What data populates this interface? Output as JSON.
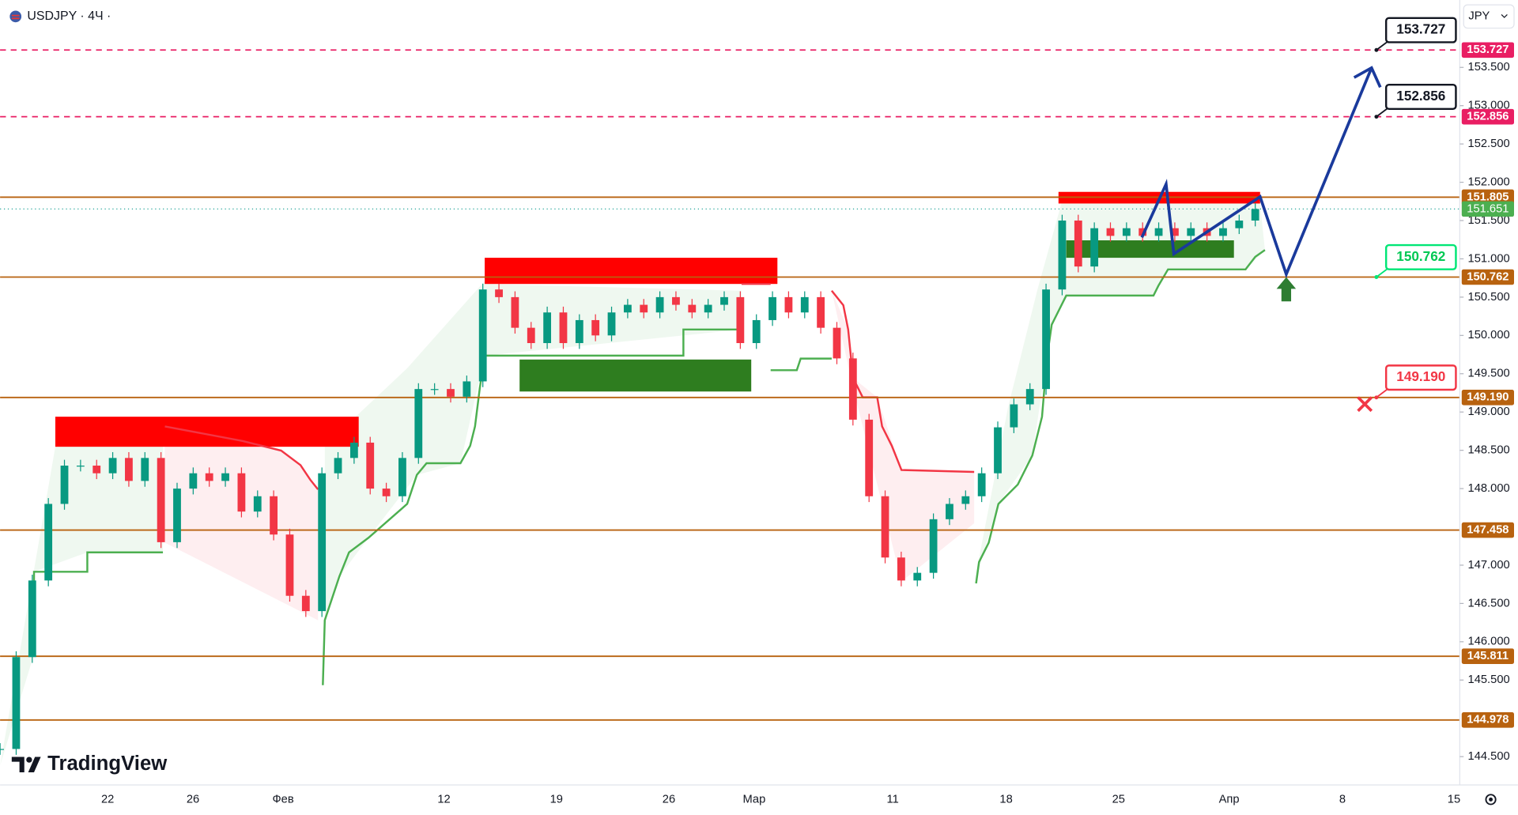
{
  "header": {
    "symbol": "USDJPY · 4Ч ·",
    "currency": "JPY"
  },
  "logo": "TradingView",
  "chart_data": {
    "type": "candlestick",
    "ylim": [
      144.13,
      154.38
    ],
    "yticks": [
      {
        "value": 144.5,
        "label": "144.500"
      },
      {
        "value": 145.5,
        "label": "145.500"
      },
      {
        "value": 146,
        "label": "146.000"
      },
      {
        "value": 146.5,
        "label": "146.500"
      },
      {
        "value": 147,
        "label": "147.000"
      },
      {
        "value": 148,
        "label": "148.000"
      },
      {
        "value": 148.5,
        "label": "148.500"
      },
      {
        "value": 149,
        "label": "149.000"
      },
      {
        "value": 149.5,
        "label": "149.500"
      },
      {
        "value": 150,
        "label": "150.000"
      },
      {
        "value": 150.5,
        "label": "150.500"
      },
      {
        "value": 151,
        "label": "151.000"
      },
      {
        "value": 151.5,
        "label": "151.500"
      },
      {
        "value": 152,
        "label": "152.000"
      },
      {
        "value": 152.5,
        "label": "152.500"
      },
      {
        "value": 153,
        "label": "153.000"
      },
      {
        "value": 153.5,
        "label": "153.500"
      }
    ],
    "x_labels": [
      "22",
      "26",
      "Фев",
      "12",
      "19",
      "26",
      "Мар",
      "11",
      "18",
      "25",
      "Апр",
      "8",
      "15"
    ],
    "levels": [
      {
        "price": 153.727,
        "color": "#e91e63",
        "style": "dashed"
      },
      {
        "price": 152.856,
        "color": "#e91e63",
        "style": "dashed"
      },
      {
        "price": 151.805,
        "color": "#b8620f",
        "style": "solid"
      },
      {
        "price": 150.762,
        "color": "#b8620f",
        "style": "solid"
      },
      {
        "price": {
          "value": 149.19,
          "label": "149.190"
        },
        "color": "#b8620f",
        "style": "solid"
      },
      {
        "price": 147.458,
        "color": "#b8620f",
        "style": "solid"
      },
      {
        "price": 145.811,
        "color": "#b8620f",
        "style": "solid"
      },
      {
        "price": 144.978,
        "color": "#b8620f",
        "style": "solid"
      }
    ],
    "last_price": 151.651,
    "callouts": [
      {
        "price": 153.727,
        "color": "#131722"
      },
      {
        "price": 152.856,
        "color": "#131722"
      },
      {
        "price": 150.762,
        "color": "#00e676"
      },
      {
        "price": {
          "value": 149.19,
          "label": "149.190"
        },
        "color": "#f23645"
      }
    ],
    "close": [
      144.6,
      145.8,
      146.8,
      147.8,
      148.3,
      148.3,
      148.2,
      148.4,
      148.1,
      148.4,
      147.3,
      148.0,
      148.2,
      148.1,
      148.2,
      147.7,
      147.9,
      147.4,
      146.6,
      146.4,
      148.2,
      148.4,
      148.6,
      148.0,
      147.9,
      148.4,
      149.3,
      149.3,
      149.2,
      149.4,
      150.6,
      150.5,
      150.1,
      149.9,
      150.3,
      149.9,
      150.2,
      150.0,
      150.3,
      150.4,
      150.3,
      150.5,
      150.4,
      150.3,
      150.4,
      150.5,
      149.9,
      150.2,
      150.5,
      150.3,
      150.5,
      150.1,
      149.7,
      148.9,
      147.9,
      147.1,
      146.8,
      146.9,
      147.6,
      147.8,
      147.9,
      148.2,
      148.8,
      149.1,
      149.3,
      150.6,
      151.5,
      150.9,
      151.4,
      151.3,
      151.4,
      151.3,
      151.4,
      151.3,
      151.4,
      151.3,
      151.4,
      151.5,
      151.651
    ]
  }
}
